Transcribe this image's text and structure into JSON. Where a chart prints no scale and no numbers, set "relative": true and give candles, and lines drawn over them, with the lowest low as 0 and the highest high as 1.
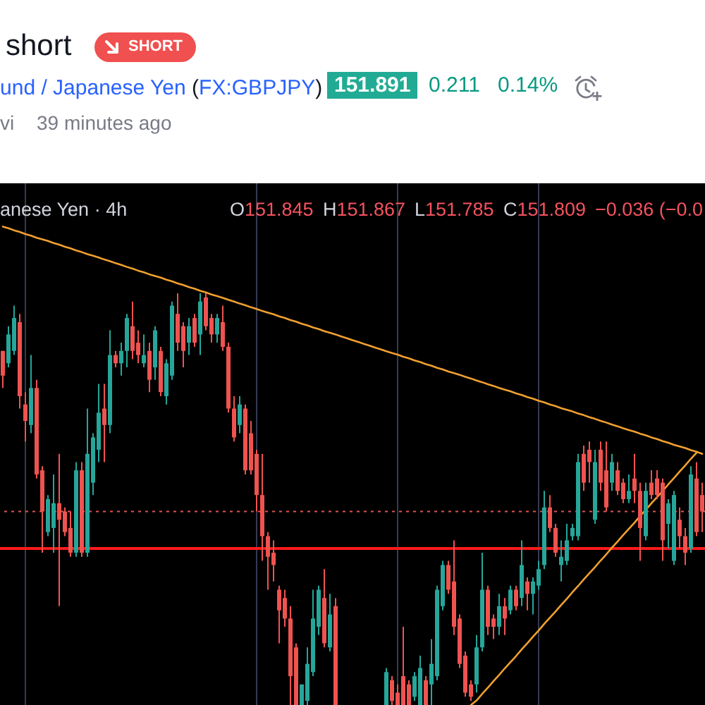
{
  "chart_data": {
    "type": "candlestick",
    "title": "short",
    "annotations": [
      "SHORT",
      "und / Japanese Yen (FX:GBPJPY)",
      "151.891",
      "0.211",
      "0.14%",
      "vi",
      "39 minutes ago",
      "anese Yen · 4h",
      "O151.845",
      "H151.867",
      "L151.785",
      "C151.809",
      "−0.036 (−0.0"
    ],
    "relative": true,
    "categories": [
      null,
      null,
      null,
      null,
      null,
      null,
      null,
      null,
      null,
      null,
      null,
      null,
      null,
      null,
      null,
      null,
      null,
      null,
      null,
      null,
      null,
      null,
      null,
      null,
      null,
      null,
      null,
      null,
      null,
      null,
      null,
      null,
      null,
      null,
      null,
      null,
      null,
      null,
      null,
      null,
      null,
      null,
      null,
      null,
      null,
      null,
      null,
      null,
      null,
      null,
      null,
      null,
      null,
      null,
      null,
      null,
      null,
      null,
      null,
      null,
      null,
      null,
      null,
      null,
      null,
      null,
      null,
      null,
      null,
      null,
      null,
      null,
      null,
      null,
      null,
      null,
      null,
      null,
      null,
      null,
      null,
      null,
      null,
      null,
      null,
      null,
      null,
      null,
      null,
      null,
      null,
      null,
      null,
      null,
      null,
      null,
      null,
      null,
      null,
      null,
      null,
      null,
      null,
      null,
      null,
      null,
      null,
      null,
      null,
      null,
      null,
      null,
      null,
      null,
      null,
      null,
      null,
      null,
      null,
      null,
      null,
      null,
      null,
      null,
      null
    ],
    "ohlc": [
      [
        0.86,
        0.86,
        0.77,
        0.8
      ],
      [
        0.83,
        0.92,
        0.82,
        0.9
      ],
      [
        0.86,
        0.97,
        0.85,
        0.94
      ],
      [
        0.93,
        0.95,
        0.72,
        0.75
      ],
      [
        0.73,
        0.76,
        0.64,
        0.69
      ],
      [
        0.68,
        0.85,
        0.66,
        0.77
      ],
      [
        0.77,
        0.79,
        0.55,
        0.56
      ],
      [
        0.57,
        0.58,
        0.37,
        0.47
      ],
      [
        0.42,
        0.51,
        0.41,
        0.5
      ],
      [
        0.43,
        0.56,
        0.37,
        0.49
      ],
      [
        0.49,
        0.61,
        0.24,
        0.45
      ],
      [
        0.47,
        0.48,
        0.41,
        0.42
      ],
      [
        0.43,
        0.47,
        0.36,
        0.37
      ],
      [
        0.37,
        0.59,
        0.36,
        0.57
      ],
      [
        0.57,
        0.59,
        0.36,
        0.37
      ],
      [
        0.37,
        0.72,
        0.36,
        0.61
      ],
      [
        0.54,
        0.66,
        0.51,
        0.65
      ],
      [
        0.62,
        0.78,
        0.59,
        0.71
      ],
      [
        0.72,
        0.78,
        0.59,
        0.68
      ],
      [
        0.68,
        0.91,
        0.66,
        0.85
      ],
      [
        0.85,
        0.86,
        0.82,
        0.83
      ],
      [
        0.83,
        0.88,
        0.8,
        0.86
      ],
      [
        0.86,
        0.95,
        0.82,
        0.94
      ],
      [
        0.92,
        0.98,
        0.84,
        0.86
      ],
      [
        0.88,
        0.91,
        0.83,
        0.85
      ],
      [
        0.83,
        0.9,
        0.82,
        0.85
      ],
      [
        0.86,
        0.88,
        0.76,
        0.79
      ],
      [
        0.82,
        0.92,
        0.79,
        0.91
      ],
      [
        0.86,
        0.87,
        0.75,
        0.76
      ],
      [
        0.75,
        0.84,
        0.73,
        0.83
      ],
      [
        0.8,
        0.98,
        0.79,
        0.97
      ],
      [
        0.95,
        1.0,
        0.86,
        0.88
      ],
      [
        0.92,
        0.93,
        0.82,
        0.86
      ],
      [
        0.88,
        0.94,
        0.85,
        0.92
      ],
      [
        0.94,
        0.95,
        0.87,
        0.88
      ],
      [
        0.9,
        1.0,
        0.85,
        0.98
      ],
      [
        0.99,
        1.0,
        0.91,
        0.92
      ],
      [
        0.94,
        0.95,
        0.88,
        0.9
      ],
      [
        0.9,
        0.95,
        0.88,
        0.94
      ],
      [
        0.93,
        0.97,
        0.86,
        0.87
      ],
      [
        0.87,
        0.88,
        0.71,
        0.72
      ],
      [
        0.72,
        0.75,
        0.64,
        0.65
      ],
      [
        0.68,
        0.75,
        0.66,
        0.73
      ],
      [
        0.72,
        0.73,
        0.56,
        0.57
      ],
      [
        0.66,
        0.69,
        0.56,
        0.57
      ],
      [
        0.61,
        0.62,
        0.47,
        0.51
      ],
      [
        0.51,
        0.61,
        0.35,
        0.41
      ],
      [
        0.41,
        0.42,
        0.28,
        0.36
      ],
      [
        0.37,
        0.4,
        0.3,
        0.34
      ],
      [
        0.28,
        0.29,
        0.15,
        0.23
      ],
      [
        0.26,
        0.28,
        0.19,
        0.21
      ],
      [
        0.21,
        0.24,
        0,
        0.07
      ],
      [
        0.14,
        0.15,
        0,
        0
      ],
      [
        0,
        0.05,
        0,
        0.05
      ],
      [
        0.01,
        0.14,
        0,
        0.1
      ],
      [
        0.08,
        0.28,
        0.07,
        0.21
      ],
      [
        0.19,
        0.29,
        0.17,
        0.28
      ],
      [
        0.26,
        0.33,
        0.14,
        0.15
      ],
      [
        0.14,
        0.27,
        0.13,
        0.22
      ],
      [
        0.24,
        0.26,
        0,
        0
      ],
      null,
      null,
      null,
      null,
      null,
      null,
      null,
      null,
      [
        0,
        0.09,
        0,
        0.08
      ],
      [
        0.06,
        0.07,
        0,
        0.01
      ],
      [
        0.03,
        0.05,
        0,
        0
      ],
      [
        0.07,
        0.19,
        0,
        0
      ],
      [
        0.05,
        0.06,
        0,
        0
      ],
      [
        0.02,
        0.08,
        0.01,
        0.07
      ],
      [
        0,
        0.12,
        0,
        0.09
      ],
      [
        0.06,
        0.07,
        0,
        0
      ],
      [
        0.05,
        0.16,
        0,
        0.1
      ],
      [
        0.07,
        0.29,
        0.06,
        0.28
      ],
      [
        0.24,
        0.35,
        0.23,
        0.34
      ],
      [
        0.34,
        0.35,
        0.27,
        0.28
      ],
      [
        0.3,
        0.4,
        0.17,
        0.19
      ],
      [
        0.21,
        0.22,
        0.09,
        0.1
      ],
      [
        0.12,
        0.13,
        0.02,
        0.03
      ],
      [
        0.05,
        0.06,
        0.01,
        0.02
      ],
      [
        0.05,
        0.17,
        0.03,
        0.14
      ],
      [
        0.14,
        0.37,
        0.13,
        0.28
      ],
      [
        0.28,
        0.29,
        0.17,
        0.19
      ],
      [
        0.21,
        0.22,
        0.16,
        0.19
      ],
      [
        0.19,
        0.27,
        0.17,
        0.24
      ],
      [
        0.24,
        0.26,
        0.17,
        0.21
      ],
      [
        0.23,
        0.29,
        0.22,
        0.28
      ],
      [
        0.28,
        0.29,
        0.23,
        0.24
      ],
      [
        0.26,
        0.4,
        0.24,
        0.34
      ],
      [
        0.3,
        0.31,
        0.23,
        0.27
      ],
      [
        0.27,
        0.31,
        0.22,
        0.3
      ],
      [
        0.29,
        0.35,
        0.28,
        0.33
      ],
      [
        0.34,
        0.52,
        0.33,
        0.48
      ],
      [
        0.48,
        0.51,
        0.42,
        0.43
      ],
      [
        0.43,
        0.44,
        0.36,
        0.37
      ],
      [
        0.34,
        0.4,
        0.3,
        0.36
      ],
      [
        0.35,
        0.44,
        0.34,
        0.4
      ],
      [
        0.41,
        0.44,
        0.4,
        0.43
      ],
      [
        0.41,
        0.61,
        0.4,
        0.59
      ],
      [
        0.61,
        0.63,
        0.52,
        0.54
      ],
      [
        0.62,
        0.64,
        0.54,
        0.59
      ],
      [
        0.45,
        0.62,
        0.44,
        0.59
      ],
      [
        0.62,
        0.64,
        0.52,
        0.54
      ],
      [
        0.57,
        0.64,
        0.47,
        0.48
      ],
      [
        0.54,
        0.61,
        0.52,
        0.59
      ],
      [
        0.57,
        0.59,
        0.51,
        0.52
      ],
      [
        0.54,
        0.55,
        0.49,
        0.5
      ],
      [
        0.5,
        0.56,
        0.49,
        0.52
      ],
      [
        0.55,
        0.61,
        0.49,
        0.52
      ],
      [
        0.52,
        0.54,
        0.35,
        0.43
      ],
      [
        0.41,
        0.54,
        0.4,
        0.52
      ],
      [
        0.54,
        0.57,
        0.5,
        0.51
      ],
      [
        0.55,
        0.57,
        0.5,
        0.51
      ],
      [
        0.54,
        0.55,
        0.35,
        0.4
      ],
      [
        0.44,
        0.5,
        0.38,
        0.49
      ],
      [
        0.35,
        0.52,
        0.34,
        0.51
      ],
      [
        0.45,
        0.48,
        0.38,
        0.41
      ],
      [
        0.41,
        0.43,
        0.34,
        0.37
      ],
      [
        0.38,
        0.58,
        0.37,
        0.56
      ],
      [
        0.55,
        0.59,
        0.41,
        0.42
      ],
      [
        0.51,
        0.54,
        0.42,
        0.47
      ]
    ],
    "colors": [
      "#ef5350",
      "#26a69a",
      "#26a69a",
      "#ef5350",
      "#ef5350",
      "#26a69a",
      "#ef5350",
      "#ef5350",
      "#26a69a",
      "#26a69a",
      "#ef5350",
      "#ef5350",
      "#ef5350",
      "#26a69a",
      "#ef5350",
      "#26a69a",
      "#26a69a",
      "#26a69a",
      "#ef5350",
      "#26a69a",
      "#ef5350",
      "#26a69a",
      "#26a69a",
      "#ef5350",
      "#ef5350",
      "#26a69a",
      "#ef5350",
      "#26a69a",
      "#ef5350",
      "#26a69a",
      "#26a69a",
      "#ef5350",
      "#ef5350",
      "#26a69a",
      "#ef5350",
      "#26a69a",
      "#ef5350",
      "#ef5350",
      "#26a69a",
      "#ef5350",
      "#ef5350",
      "#ef5350",
      "#26a69a",
      "#ef5350",
      "#ef5350",
      "#ef5350",
      "#ef5350",
      "#ef5350",
      "#ef5350",
      "#ef5350",
      "#ef5350",
      "#ef5350",
      "#ef5350",
      "#26a69a",
      "#26a69a",
      "#26a69a",
      "#26a69a",
      "#ef5350",
      "#26a69a",
      "#ef5350",
      null,
      null,
      null,
      null,
      null,
      null,
      null,
      null,
      "#26a69a",
      "#ef5350",
      "#ef5350",
      "#ef5350",
      "#ef5350",
      "#26a69a",
      "#26a69a",
      "#ef5350",
      "#26a69a",
      "#26a69a",
      "#26a69a",
      "#ef5350",
      "#ef5350",
      "#ef5350",
      "#ef5350",
      "#ef5350",
      "#26a69a",
      "#26a69a",
      "#ef5350",
      "#ef5350",
      "#26a69a",
      "#ef5350",
      "#26a69a",
      "#ef5350",
      "#26a69a",
      "#ef5350",
      "#26a69a",
      "#26a69a",
      "#26a69a",
      "#ef5350",
      "#ef5350",
      "#26a69a",
      "#26a69a",
      "#26a69a",
      "#26a69a",
      "#ef5350",
      "#ef5350",
      "#26a69a",
      "#ef5350",
      "#ef5350",
      "#26a69a",
      "#ef5350",
      "#ef5350",
      "#26a69a",
      "#ef5350",
      "#ef5350",
      "#26a69a",
      "#ef5350",
      "#ef5350",
      "#ef5350",
      "#26a69a",
      "#26a69a",
      "#ef5350",
      "#ef5350",
      "#26a69a",
      "#ef5350",
      "#ef5350"
    ],
    "series": [
      {
        "type": "line",
        "color": "#f0a030",
        "values": [
          1.162,
          1.158,
          1.153,
          1.149,
          1.144,
          1.14,
          1.135,
          1.131,
          1.127,
          1.122,
          1.118,
          1.113,
          1.109,
          1.104,
          1.1,
          1.095,
          1.091,
          1.087,
          1.082,
          1.078,
          1.073,
          1.069,
          1.064,
          1.06,
          1.055,
          1.051,
          1.046,
          1.042,
          1.038,
          1.033,
          1.029,
          1.024,
          1.02,
          1.015,
          1.011,
          1.006,
          1.002,
          0.997,
          0.993,
          0.989,
          0.984,
          0.98,
          0.975,
          0.971,
          0.966,
          0.962,
          0.957,
          0.953,
          0.949,
          0.944,
          0.94,
          0.935,
          0.931,
          0.926,
          0.922,
          0.917,
          0.913,
          0.908,
          0.904,
          0.9,
          0.895,
          0.891,
          0.886,
          0.882,
          0.877,
          0.873,
          0.868,
          0.864,
          0.859,
          0.855,
          0.851,
          0.846,
          0.842,
          0.837,
          0.833,
          0.828,
          0.824,
          0.819,
          0.815,
          0.81,
          0.806,
          0.802,
          0.797,
          0.793,
          0.788,
          0.784,
          0.779,
          0.775,
          0.77,
          0.766,
          0.762,
          0.757,
          0.753,
          0.748,
          0.744,
          0.739,
          0.735,
          0.73,
          0.726,
          0.721,
          0.717,
          0.713,
          0.708,
          0.704,
          0.699,
          0.695,
          0.69,
          0.686,
          0.681,
          0.677,
          0.672,
          0.668,
          0.664,
          0.659,
          0.655,
          0.65,
          0.646,
          0.641,
          0.637,
          0.632,
          0.628,
          0.624,
          0.619,
          0.615,
          0.61
        ]
      },
      {
        "type": "line",
        "color": "#f0a030",
        "values": [
          null,
          null,
          null,
          null,
          null,
          null,
          null,
          null,
          null,
          null,
          null,
          null,
          null,
          null,
          null,
          null,
          null,
          null,
          null,
          null,
          null,
          null,
          null,
          null,
          null,
          null,
          null,
          null,
          null,
          null,
          null,
          null,
          null,
          null,
          null,
          null,
          null,
          null,
          null,
          null,
          null,
          null,
          null,
          null,
          null,
          null,
          null,
          null,
          null,
          null,
          null,
          null,
          null,
          null,
          null,
          null,
          null,
          null,
          null,
          null,
          null,
          null,
          null,
          null,
          null,
          null,
          null,
          null,
          null,
          null,
          null,
          null,
          null,
          null,
          null,
          null,
          null,
          null,
          null,
          null,
          null,
          null,
          null,
          0.0,
          0.011,
          0.027,
          0.042,
          0.058,
          0.073,
          0.089,
          0.104,
          0.119,
          0.135,
          0.15,
          0.166,
          0.181,
          0.197,
          0.212,
          0.227,
          0.243,
          0.258,
          0.274,
          0.289,
          0.305,
          0.32,
          0.335,
          0.351,
          0.366,
          0.382,
          0.397,
          0.413,
          0.428,
          0.443,
          0.459,
          0.474,
          0.49,
          0.505,
          0.52,
          0.536,
          0.551,
          0.567,
          0.582,
          0.598,
          0.613,
          null
        ]
      }
    ],
    "ref_lines": [
      {
        "axis": "y",
        "value": 0.38,
        "color": "#ff1a1a",
        "line_style": "solid"
      },
      {
        "axis": "y",
        "value": 0.47,
        "color": "#e0564f",
        "line_style": "dotted"
      }
    ]
  }
}
